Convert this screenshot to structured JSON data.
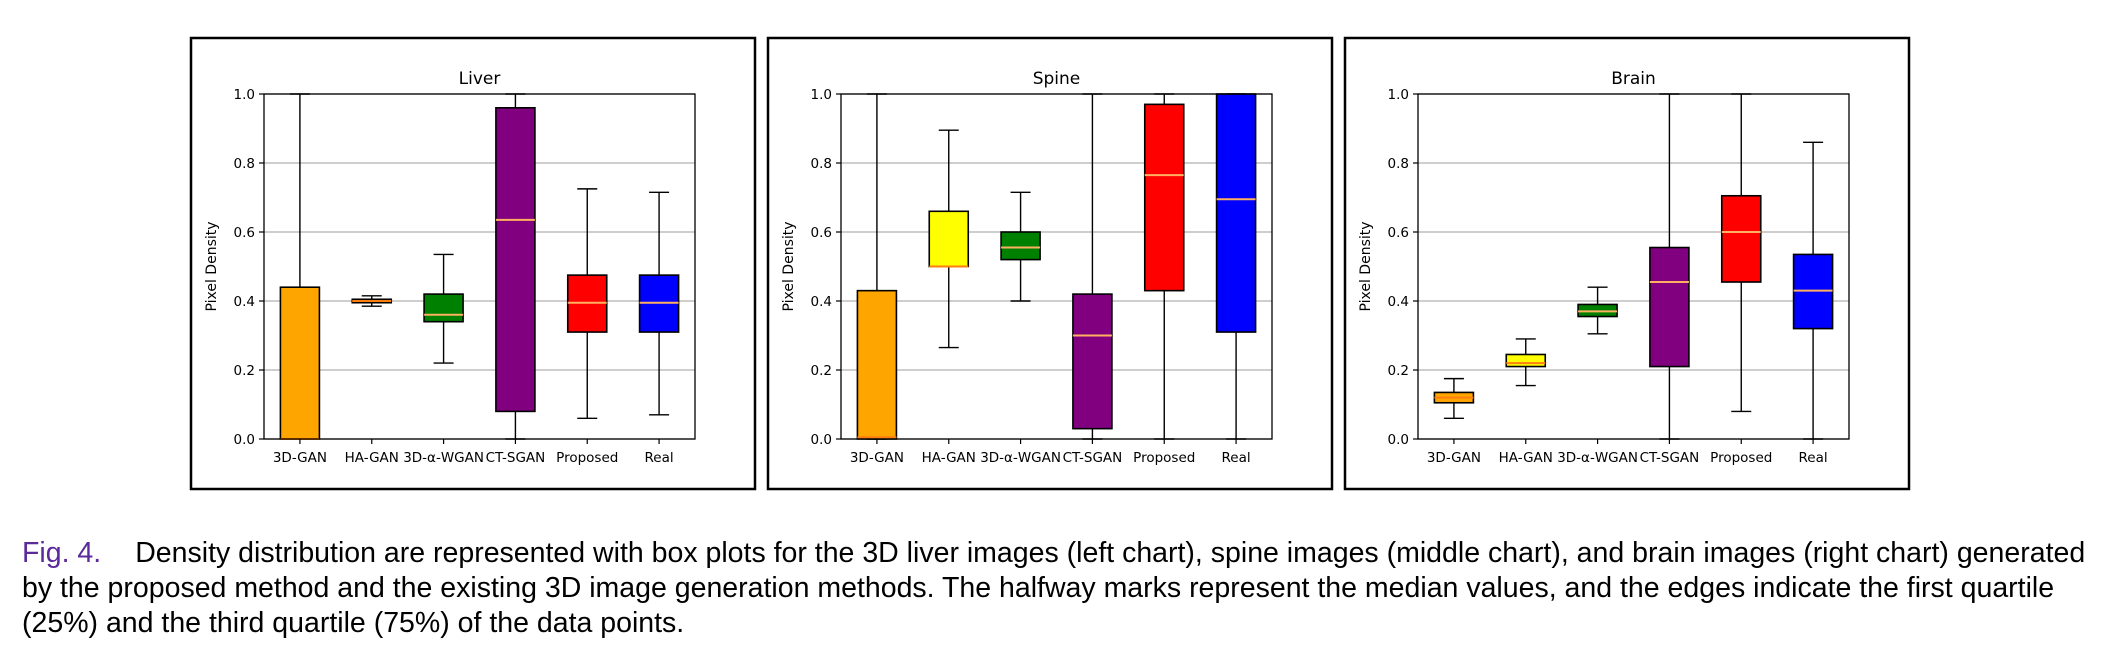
{
  "figure": {
    "label": "Fig. 4.",
    "caption": "Density distribution are represented with box plots for the 3D liver images (left chart), spine images (middle chart), and brain images (right chart) generated by the proposed method and the existing 3D image generation methods. The halfway marks represent the median values, and the edges indicate the first quartile (25%) and the third quartile (75%) of the data points."
  },
  "colors": {
    "3D-GAN": "#ffa500",
    "HA-GAN": "#ffff00",
    "3D-α-WGAN": "#008000",
    "CT-SGAN": "#800080",
    "Proposed": "#ff0000",
    "Real": "#0000ff",
    "median_dark": "#ff7f0e",
    "median_light": "#ffb060"
  },
  "chart_data": [
    {
      "type": "box",
      "title": "Liver",
      "ylabel": "Pixel Density",
      "ylim": [
        0,
        1
      ],
      "yticks": [
        "0.0",
        "0.2",
        "0.4",
        "0.6",
        "0.8",
        "1.0"
      ],
      "grid": "horizontal",
      "categories": [
        "3D-GAN",
        "HA-GAN",
        "3D-α-WGAN",
        "CT-SGAN",
        "Proposed",
        "Real"
      ],
      "boxes": [
        {
          "min": 0.0,
          "q1": 0.0,
          "median": 0.0,
          "q3": 0.44,
          "max": 1.0
        },
        {
          "min": 0.385,
          "q1": 0.395,
          "median": 0.4,
          "q3": 0.405,
          "max": 0.415
        },
        {
          "min": 0.22,
          "q1": 0.34,
          "median": 0.36,
          "q3": 0.42,
          "max": 0.535
        },
        {
          "min": 0.0,
          "q1": 0.08,
          "median": 0.635,
          "q3": 0.96,
          "max": 1.0
        },
        {
          "min": 0.06,
          "q1": 0.31,
          "median": 0.395,
          "q3": 0.475,
          "max": 0.725
        },
        {
          "min": 0.07,
          "q1": 0.31,
          "median": 0.395,
          "q3": 0.475,
          "max": 0.715
        }
      ]
    },
    {
      "type": "box",
      "title": "Spine",
      "ylabel": "Pixel Density",
      "ylim": [
        0,
        1
      ],
      "yticks": [
        "0.0",
        "0.2",
        "0.4",
        "0.6",
        "0.8",
        "1.0"
      ],
      "grid": "horizontal",
      "categories": [
        "3D-GAN",
        "HA-GAN",
        "3D-α-WGAN",
        "CT-SGAN",
        "Proposed",
        "Real"
      ],
      "boxes": [
        {
          "min": 0.0,
          "q1": 0.0,
          "median": 0.005,
          "q3": 0.43,
          "max": 1.0
        },
        {
          "min": 0.265,
          "q1": 0.5,
          "median": 0.5,
          "q3": 0.66,
          "max": 0.895
        },
        {
          "min": 0.4,
          "q1": 0.52,
          "median": 0.555,
          "q3": 0.6,
          "max": 0.715
        },
        {
          "min": 0.0,
          "q1": 0.03,
          "median": 0.3,
          "q3": 0.42,
          "max": 1.0
        },
        {
          "min": 0.0,
          "q1": 0.43,
          "median": 0.765,
          "q3": 0.97,
          "max": 1.0
        },
        {
          "min": 0.0,
          "q1": 0.31,
          "median": 0.695,
          "q3": 1.0,
          "max": 1.0
        }
      ]
    },
    {
      "type": "box",
      "title": "Brain",
      "ylabel": "Pixel Density",
      "ylim": [
        0,
        1
      ],
      "yticks": [
        "0.0",
        "0.2",
        "0.4",
        "0.6",
        "0.8",
        "1.0"
      ],
      "grid": "horizontal",
      "categories": [
        "3D-GAN",
        "HA-GAN",
        "3D-α-WGAN",
        "CT-SGAN",
        "Proposed",
        "Real"
      ],
      "boxes": [
        {
          "min": 0.06,
          "q1": 0.105,
          "median": 0.12,
          "q3": 0.135,
          "max": 0.175
        },
        {
          "min": 0.155,
          "q1": 0.21,
          "median": 0.22,
          "q3": 0.245,
          "max": 0.29
        },
        {
          "min": 0.305,
          "q1": 0.355,
          "median": 0.37,
          "q3": 0.39,
          "max": 0.44
        },
        {
          "min": 0.0,
          "q1": 0.21,
          "median": 0.455,
          "q3": 0.555,
          "max": 1.0
        },
        {
          "min": 0.08,
          "q1": 0.455,
          "median": 0.6,
          "q3": 0.705,
          "max": 1.0
        },
        {
          "min": 0.0,
          "q1": 0.32,
          "median": 0.43,
          "q3": 0.535,
          "max": 0.86
        }
      ]
    }
  ]
}
